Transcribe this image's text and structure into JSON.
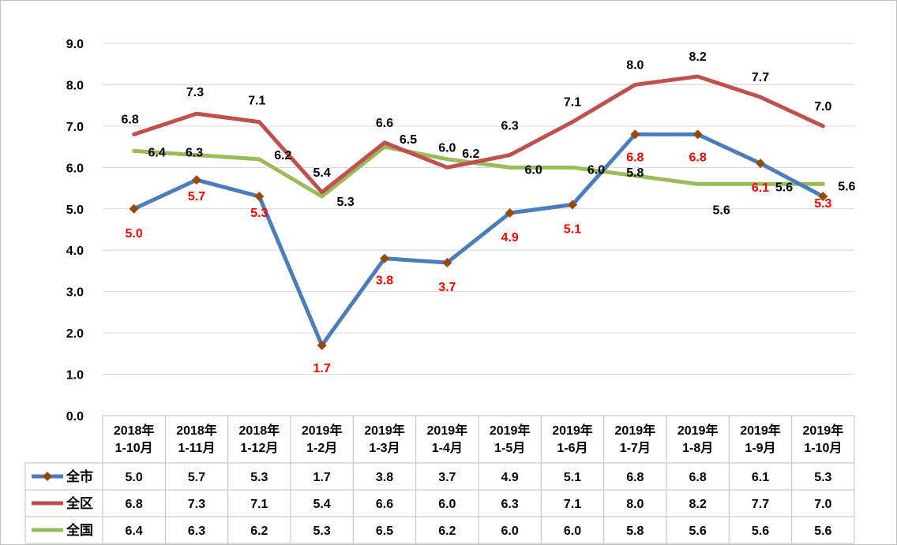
{
  "chart_data": {
    "type": "line",
    "title": "",
    "xlabel": "",
    "ylabel": "",
    "ylim": [
      0,
      9
    ],
    "yticks": [
      "0.0",
      "1.0",
      "2.0",
      "3.0",
      "4.0",
      "5.0",
      "6.0",
      "7.0",
      "8.0",
      "9.0"
    ],
    "grid": true,
    "legend_position": "bottom data table",
    "categories": [
      [
        "2018年",
        "1-10月"
      ],
      [
        "2018年",
        "1-11月"
      ],
      [
        "2018年",
        "1-12月"
      ],
      [
        "2019年",
        "1-2月"
      ],
      [
        "2019年",
        "1-3月"
      ],
      [
        "2019年",
        "1-4月"
      ],
      [
        "2019年",
        "1-5月"
      ],
      [
        "2019年",
        "1-6月"
      ],
      [
        "2019年",
        "1-7月"
      ],
      [
        "2019年",
        "1-8月"
      ],
      [
        "2019年",
        "1-9月"
      ],
      [
        "2019年",
        "1-10月"
      ]
    ],
    "series": [
      {
        "name": "全市",
        "color": "#4a7ebb",
        "marker": "diamond",
        "marker_color": "#984807",
        "label_color": "#ff0000",
        "values": [
          5.0,
          5.7,
          5.3,
          1.7,
          3.8,
          3.7,
          4.9,
          5.1,
          6.8,
          6.8,
          6.1,
          5.3
        ],
        "labels": [
          "5.0",
          "5.7",
          "5.3",
          "1.7",
          "3.8",
          "3.7",
          "4.9",
          "5.1",
          "6.8",
          "6.8",
          "6.1",
          "5.3"
        ]
      },
      {
        "name": "全区",
        "color": "#c0504d",
        "marker": "none",
        "label_color": "#000000",
        "values": [
          6.8,
          7.3,
          7.1,
          5.4,
          6.6,
          6.0,
          6.3,
          7.1,
          8.0,
          8.2,
          7.7,
          7.0
        ],
        "labels": [
          "6.8",
          "7.3",
          "7.1",
          "5.4",
          "6.6",
          "6.0",
          "6.3",
          "7.1",
          "8.0",
          "8.2",
          "7.7",
          "7.0"
        ]
      },
      {
        "name": "全国",
        "color": "#9bbb59",
        "marker": "none",
        "label_color": "#000000",
        "values": [
          6.4,
          6.3,
          6.2,
          5.3,
          6.5,
          6.2,
          6.0,
          6.0,
          5.8,
          5.6,
          5.6,
          5.6
        ],
        "labels": [
          "6.4",
          "6.3",
          "6.2",
          "5.3",
          "6.5",
          "6.2",
          "6.0",
          "6.0",
          "5.8",
          "5.6",
          "5.6",
          "5.6"
        ]
      }
    ]
  }
}
